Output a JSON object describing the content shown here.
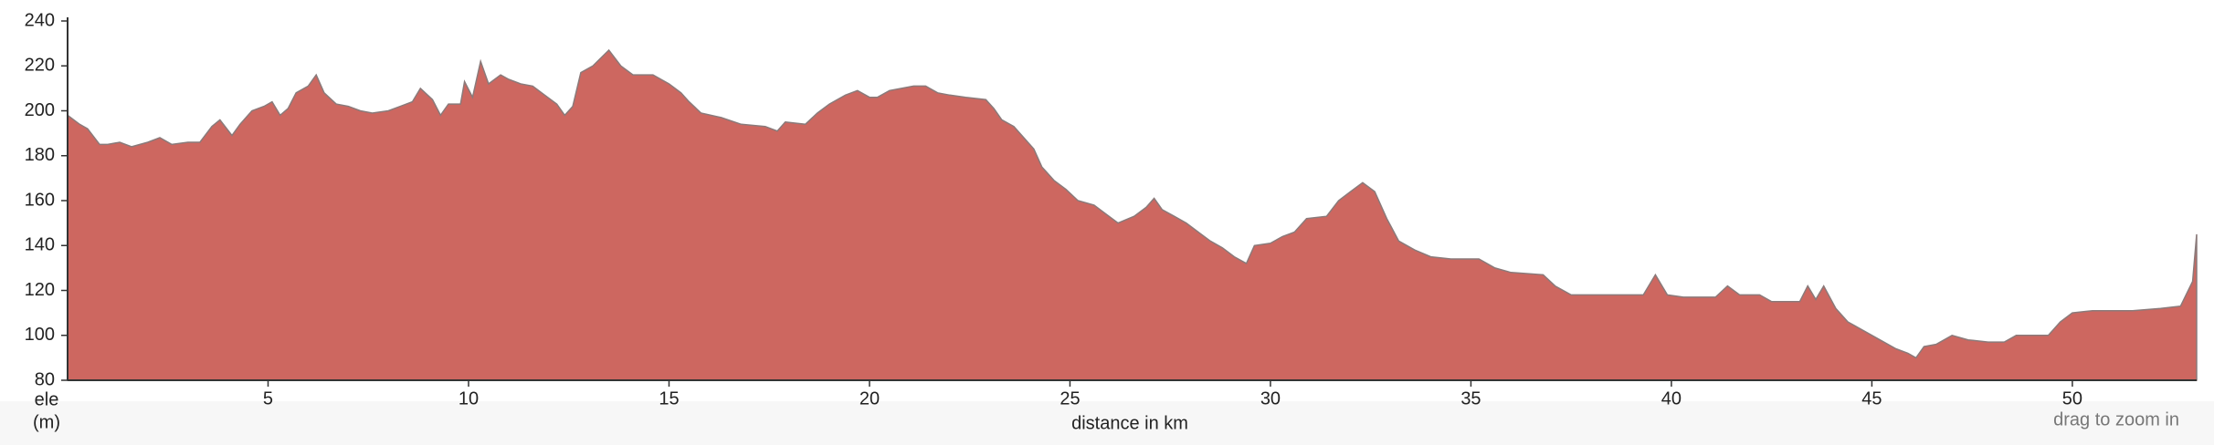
{
  "chart_data": {
    "type": "area",
    "y_label_line1": "ele",
    "y_label_line2": "(m)",
    "x_label": "distance in km",
    "hint": "drag to zoom in",
    "color": "#cd6760",
    "line_color": "#8a7a7a",
    "xlim": [
      0,
      53.1
    ],
    "ylim": [
      80,
      240
    ],
    "xticks": [
      5,
      10,
      15,
      20,
      25,
      30,
      35,
      40,
      45,
      50
    ],
    "yticks": [
      80,
      100,
      120,
      140,
      160,
      180,
      200,
      220,
      240
    ],
    "x": [
      0,
      0.3,
      0.5,
      0.8,
      1,
      1.3,
      1.6,
      2,
      2.3,
      2.6,
      3,
      3.3,
      3.6,
      3.8,
      4.1,
      4.3,
      4.6,
      4.9,
      5.1,
      5.3,
      5.5,
      5.7,
      6,
      6.2,
      6.4,
      6.7,
      7,
      7.3,
      7.6,
      8,
      8.3,
      8.6,
      8.8,
      9.1,
      9.3,
      9.5,
      9.8,
      9.9,
      10.1,
      10.3,
      10.5,
      10.8,
      11,
      11.3,
      11.6,
      11.9,
      12.2,
      12.4,
      12.6,
      12.8,
      13.1,
      13.5,
      13.8,
      14.1,
      14.6,
      15,
      15.3,
      15.5,
      15.8,
      16.3,
      16.8,
      17.4,
      17.7,
      17.9,
      18.4,
      18.7,
      19,
      19.4,
      19.7,
      20,
      20.2,
      20.5,
      20.8,
      21.1,
      21.4,
      21.7,
      22,
      22.4,
      22.9,
      23.1,
      23.3,
      23.6,
      23.8,
      24.1,
      24.3,
      24.6,
      24.9,
      25.2,
      25.6,
      25.9,
      26.2,
      26.6,
      26.9,
      27.1,
      27.3,
      27.6,
      27.9,
      28.2,
      28.5,
      28.8,
      29.1,
      29.4,
      29.6,
      30,
      30.3,
      30.6,
      30.9,
      31.4,
      31.7,
      32,
      32.3,
      32.6,
      32.9,
      33.2,
      33.6,
      34,
      34.5,
      35.2,
      35.6,
      36,
      36.8,
      37.1,
      37.5,
      38.5,
      39.3,
      39.6,
      39.9,
      40.3,
      41.1,
      41.4,
      41.7,
      42.2,
      42.5,
      43.2,
      43.4,
      43.6,
      43.8,
      44.1,
      44.4,
      44.8,
      45.2,
      45.6,
      45.9,
      46.1,
      46.3,
      46.6,
      47,
      47.4,
      47.9,
      48.3,
      48.6,
      49.4,
      49.7,
      50,
      50.5,
      51.5,
      52.2,
      52.7,
      53,
      53.1
    ],
    "values": [
      198,
      194,
      192,
      185,
      185,
      186,
      184,
      186,
      188,
      185,
      186,
      186,
      193,
      196,
      189,
      194,
      200,
      202,
      204,
      198,
      201,
      208,
      211,
      216,
      208,
      203,
      202,
      200,
      199,
      200,
      202,
      204,
      210,
      205,
      198,
      203,
      203,
      213,
      206,
      222,
      212,
      216,
      214,
      212,
      211,
      207,
      203,
      198,
      202,
      217,
      220,
      227,
      220,
      216,
      216,
      212,
      208,
      204,
      199,
      197,
      194,
      193,
      191,
      195,
      194,
      199,
      203,
      207,
      209,
      206,
      206,
      209,
      210,
      211,
      211,
      208,
      207,
      206,
      205,
      201,
      196,
      193,
      189,
      183,
      175,
      169,
      165,
      160,
      158,
      154,
      150,
      153,
      157,
      161,
      156,
      153,
      150,
      146,
      142,
      139,
      135,
      132,
      140,
      141,
      144,
      146,
      152,
      153,
      160,
      164,
      168,
      164,
      152,
      142,
      138,
      135,
      134,
      134,
      130,
      128,
      127,
      122,
      118,
      118,
      118,
      127,
      118,
      117,
      117,
      122,
      118,
      118,
      115,
      115,
      122,
      116,
      122,
      112,
      106,
      102,
      98,
      94,
      92,
      90,
      95,
      96,
      100,
      98,
      97,
      97,
      100,
      100,
      106,
      110,
      111,
      111,
      112,
      113,
      124,
      145
    ]
  }
}
